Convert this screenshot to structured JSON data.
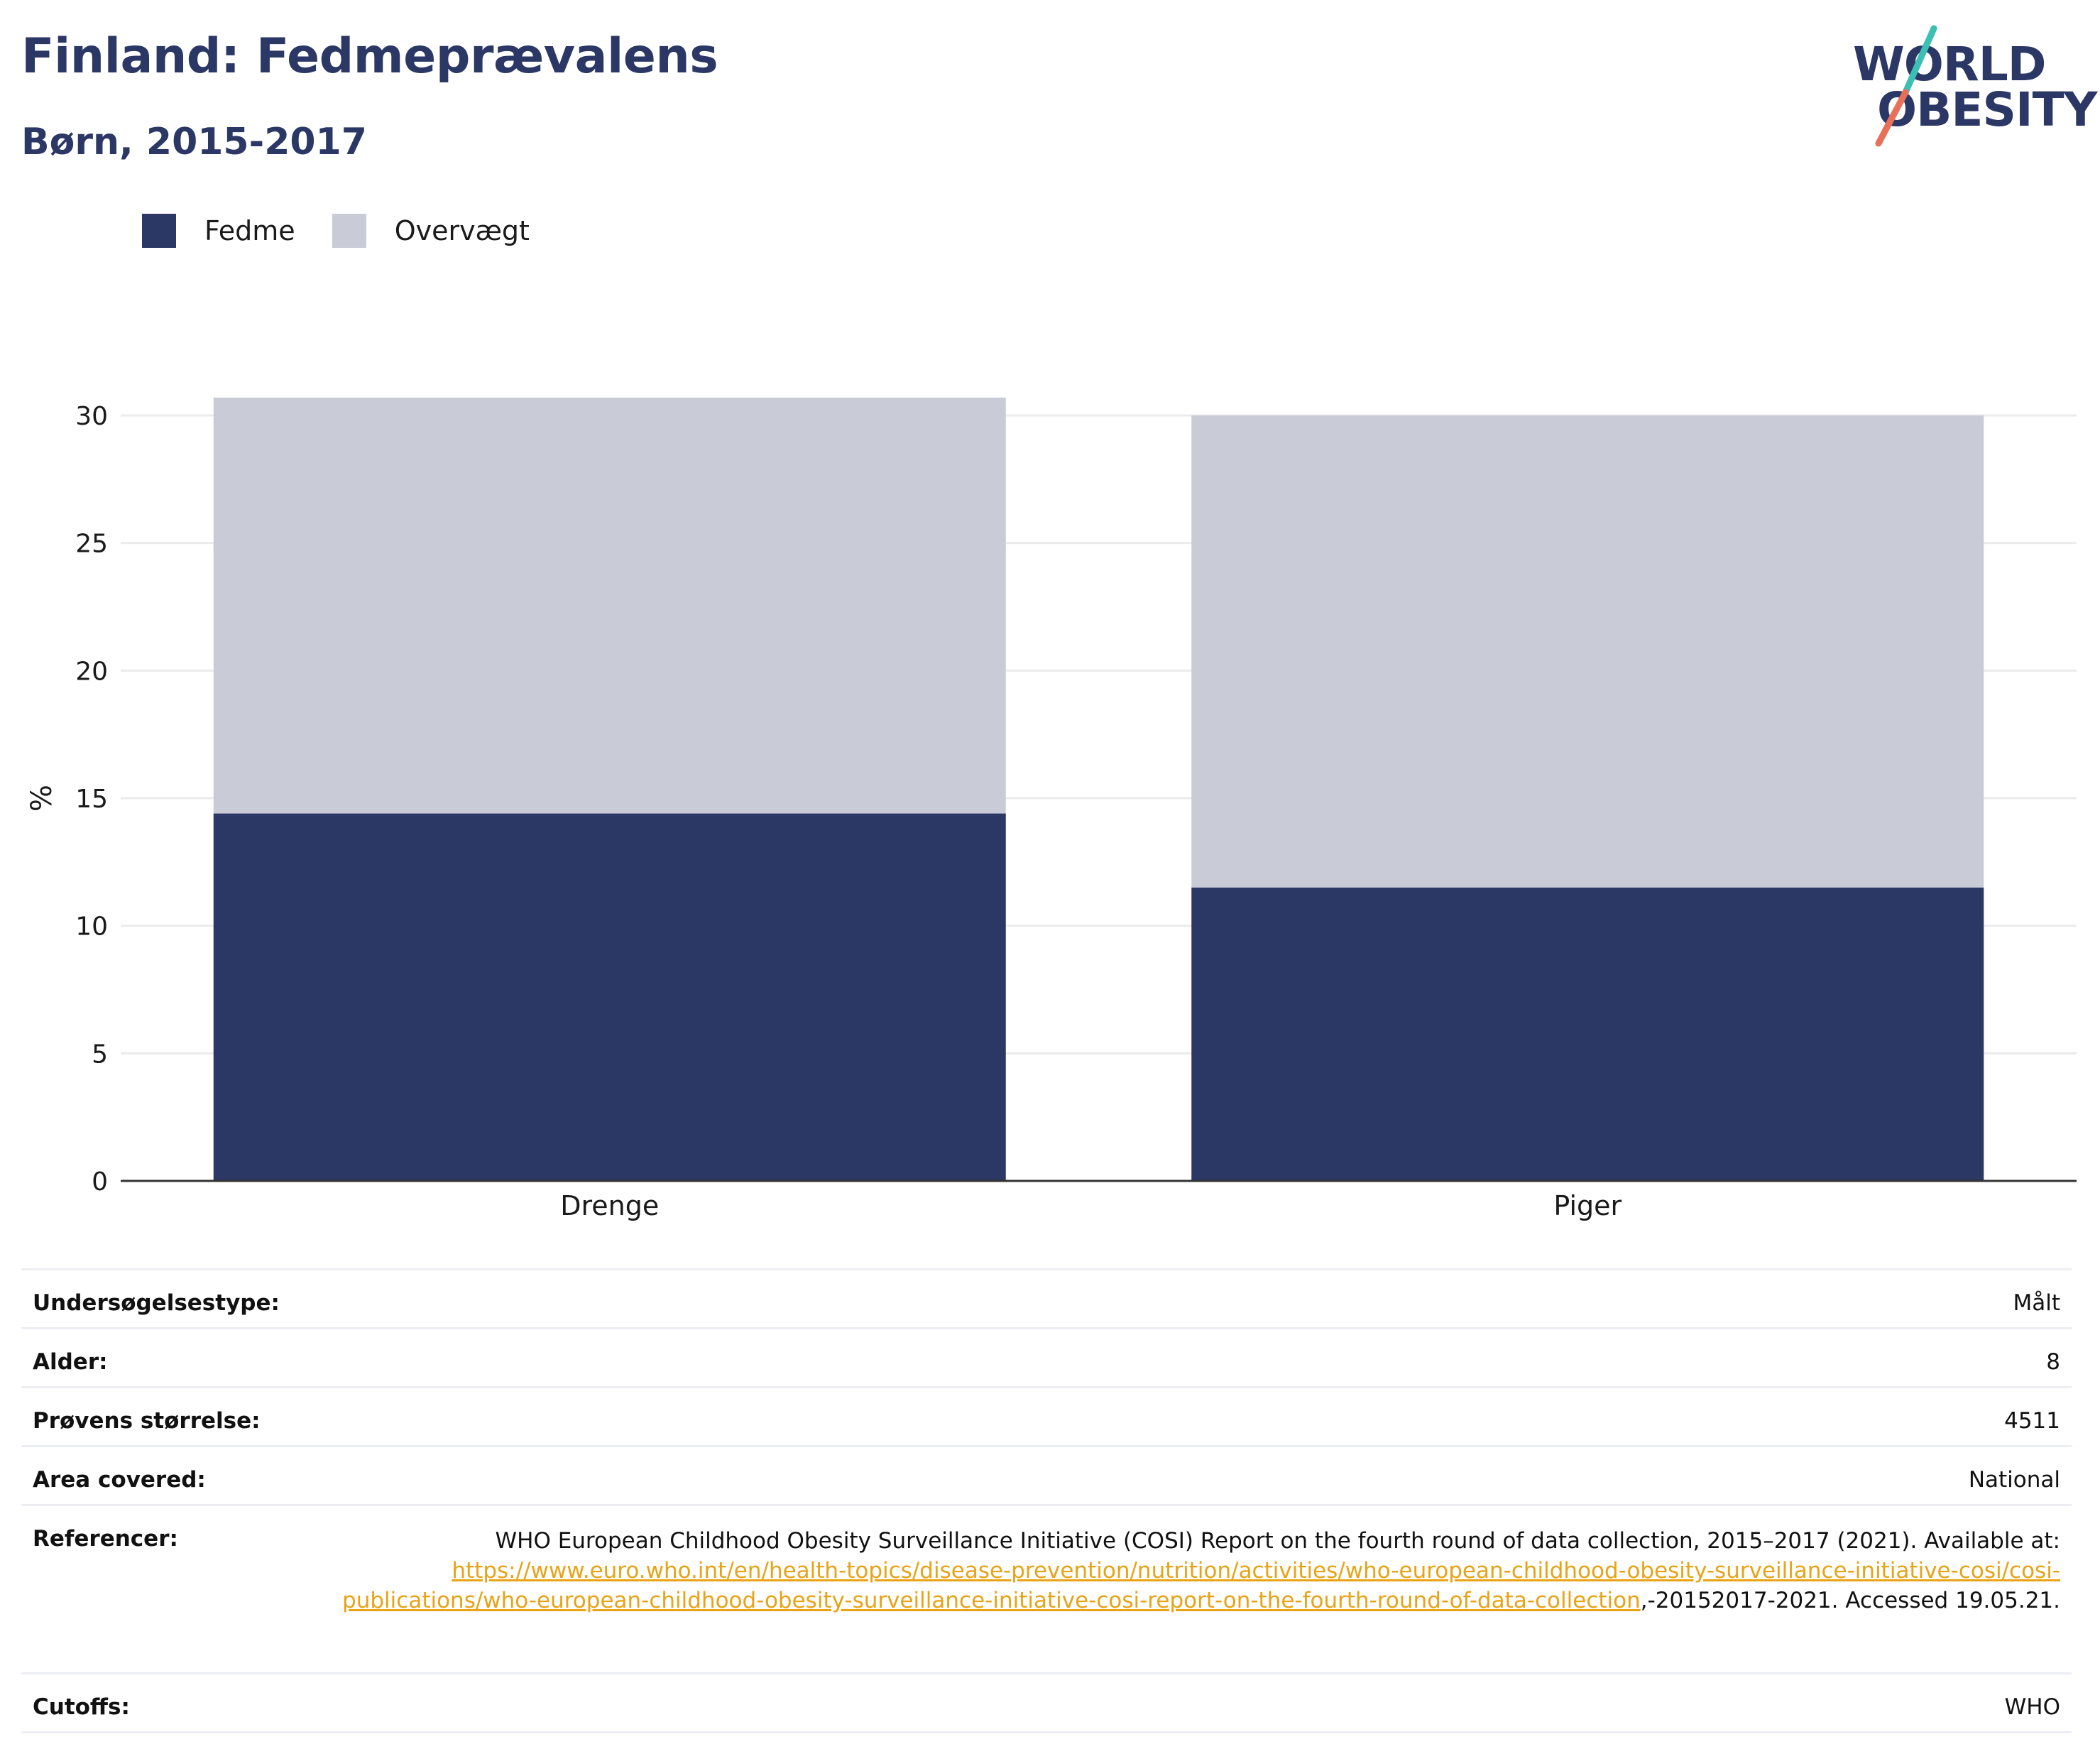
{
  "header": {
    "title": "Finland: Fedmeprævalens",
    "subtitle": "Børn, 2015-2017"
  },
  "logo": {
    "line1": "WORLD",
    "line2": "OBESITY"
  },
  "colors": {
    "fedme": "#2b3765",
    "overvaegt": "#c9ccd7",
    "title": "#2b3765",
    "link": "#e8a317",
    "logo_teal": "#3cbfb4",
    "logo_coral": "#e8705a"
  },
  "legend": [
    {
      "label": "Fedme",
      "color": "#2b3765"
    },
    {
      "label": "Overvægt",
      "color": "#c9ccd7"
    }
  ],
  "chart_data": {
    "type": "bar",
    "stacked": true,
    "categories": [
      "Drenge",
      "Piger"
    ],
    "series": [
      {
        "name": "Fedme",
        "values": [
          14.4,
          11.5
        ]
      },
      {
        "name": "Overvægt",
        "values": [
          16.3,
          18.5
        ]
      }
    ],
    "title": "Finland: Fedmeprævalens",
    "subtitle": "Børn, 2015-2017",
    "xlabel": "",
    "ylabel": "%",
    "ylim": [
      0,
      30.7
    ],
    "yticks": [
      0,
      5,
      10,
      15,
      20,
      25,
      30
    ],
    "grid": true,
    "legend_position": "top-left"
  },
  "info": {
    "survey_type": {
      "label": "Undersøgelsestype:",
      "value": "Målt"
    },
    "age": {
      "label": "Alder:",
      "value": "8"
    },
    "sample_size": {
      "label": "Prøvens størrelse:",
      "value": "4511"
    },
    "area": {
      "label": "Area covered:",
      "value": "National"
    },
    "references": {
      "label": "Referencer:",
      "text_before": "WHO European Childhood Obesity Surveillance Initiative (COSI) Report on the fourth round of data collection, 2015–2017 (2021). Available at: ",
      "link": "https://www.euro.who.int/en/health-topics/disease-prevention/nutrition/activities/who-european-childhood-obesity-surveillance-initiative-cosi/cosi-publications/who-european-childhood-obesity-surveillance-initiative-cosi-report-on-the-fourth-round-of-data-collection",
      "text_after": ",-20152017-2021. Accessed 19.05.21."
    },
    "cutoffs": {
      "label": "Cutoffs:",
      "value": "WHO"
    }
  }
}
